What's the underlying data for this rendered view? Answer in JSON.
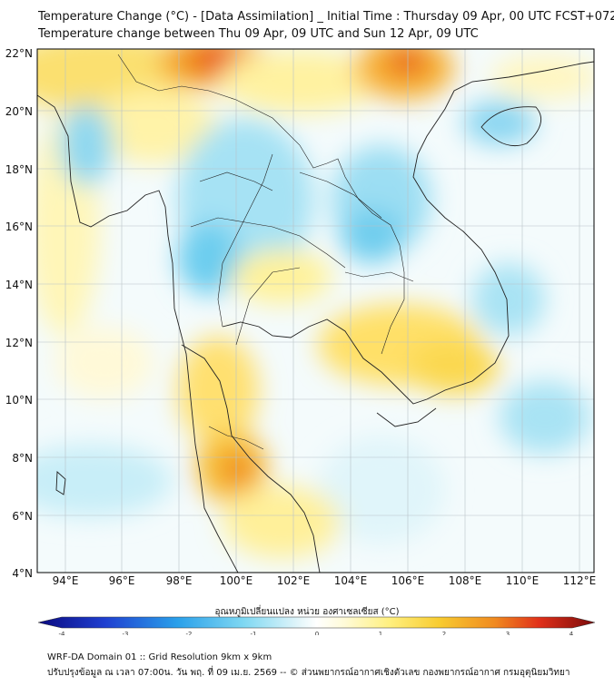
{
  "title_line1": "Temperature Change (°C) - [Data Assimilation] _ Initial Time : Thursday 09 Apr, 00 UTC FCST+072",
  "title_line2": "Temperature change between Thu 09 Apr, 09 UTC and Sun 12 Apr, 09 UTC",
  "map": {
    "lon_range": [
      93,
      112.5
    ],
    "lat_range": [
      4,
      22
    ],
    "lon_ticks": [
      "94°E",
      "96°E",
      "98°E",
      "100°E",
      "102°E",
      "104°E",
      "106°E",
      "108°E",
      "110°E",
      "112°E"
    ],
    "lat_ticks": [
      "22°N",
      "20°N",
      "18°N",
      "16°N",
      "14°N",
      "12°N",
      "10°N",
      "8°N",
      "6°N",
      "4°N"
    ],
    "grid": true
  },
  "colorbar": {
    "title": "อุณหภูมิเปลี่ยนแปลง หน่วย องศาเซลเซียส (°C)",
    "min": -4,
    "max": 4,
    "ticks": [
      "-4",
      "-3",
      "-2",
      "-1",
      "0",
      "1",
      "2",
      "3",
      "4"
    ],
    "colors": {
      "cold_end": "#0a0a80",
      "cold": "#1f4fe0",
      "cool": "#4cc8f0",
      "light": "#d8f2f8",
      "neutral": "#ffffff",
      "warm_light": "#fff7b0",
      "warm": "#f7c830",
      "hot": "#e8401c",
      "hot_end": "#7a0a0a"
    }
  },
  "footer_line1": "WRF-DA Domain 01 :: Grid Resolution 9km x 9km",
  "footer_line2": "ปรับปรุงข้อมูล ณ เวลา 07:00น. วัน พฤ. ที่ 09 เม.ย. 2569 -- © ส่วนพยากรณ์อากาศเชิงตัวเลข กองพยากรณ์อากาศ กรมอุตุนิยมวิทยา"
}
